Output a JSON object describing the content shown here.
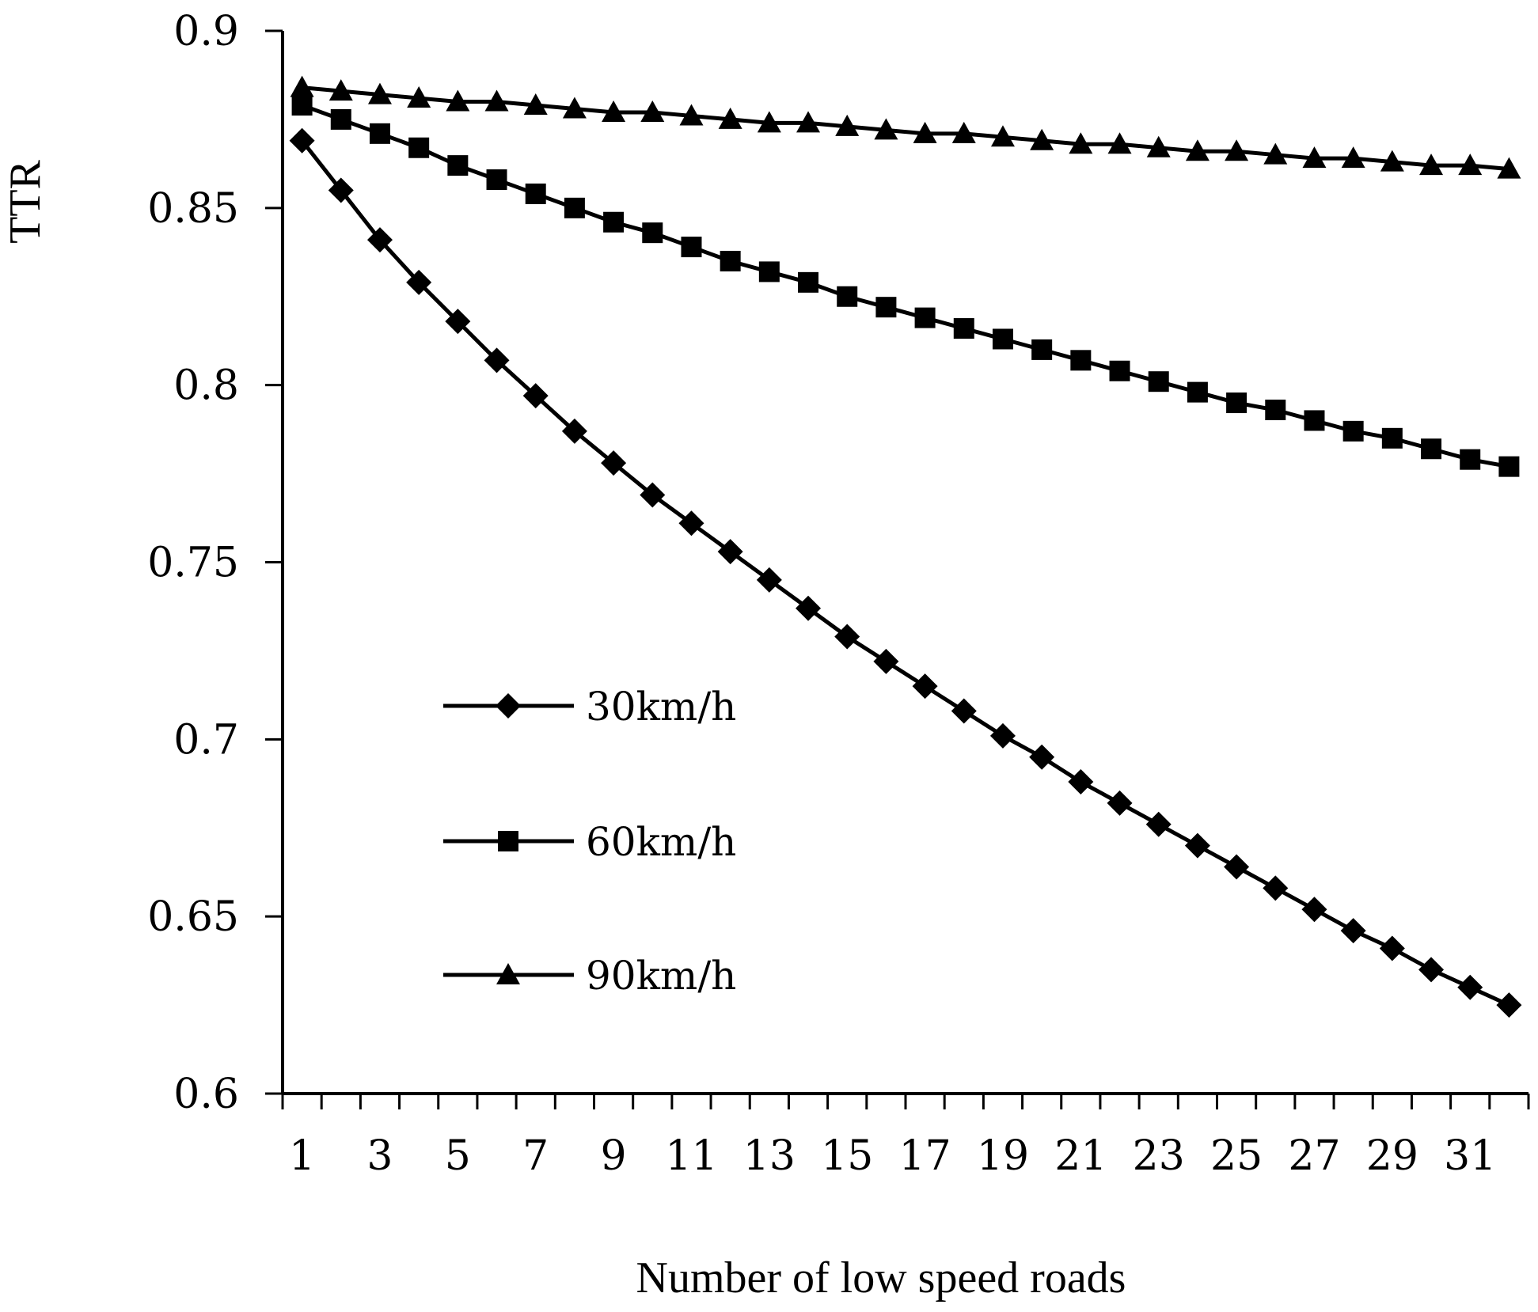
{
  "chart_data": {
    "type": "line",
    "title": "",
    "xlabel": "Number of  low speed roads",
    "ylabel": "TTR",
    "x": [
      1,
      2,
      3,
      4,
      5,
      6,
      7,
      8,
      9,
      10,
      11,
      12,
      13,
      14,
      15,
      16,
      17,
      18,
      19,
      20,
      21,
      22,
      23,
      24,
      25,
      26,
      27,
      28,
      29,
      30,
      31,
      32
    ],
    "x_tick_labels": [
      "1",
      "3",
      "5",
      "7",
      "9",
      "11",
      "13",
      "15",
      "17",
      "19",
      "21",
      "23",
      "25",
      "27",
      "29",
      "31"
    ],
    "xlim": [
      0.5,
      32.5
    ],
    "ylim": [
      0.6,
      0.9
    ],
    "y_ticks": [
      0.6,
      0.65,
      0.7,
      0.75,
      0.8,
      0.85,
      0.9
    ],
    "y_tick_labels": [
      "0.6",
      "0.65",
      "0.7",
      "0.75",
      "0.8",
      "0.85",
      "0.9"
    ],
    "grid": false,
    "legend_position": "center-left",
    "series": [
      {
        "name": "30km/h",
        "marker": "diamond",
        "values": [
          0.869,
          0.855,
          0.841,
          0.829,
          0.818,
          0.807,
          0.797,
          0.787,
          0.778,
          0.769,
          0.761,
          0.753,
          0.745,
          0.737,
          0.729,
          0.722,
          0.715,
          0.708,
          0.701,
          0.695,
          0.688,
          0.682,
          0.676,
          0.67,
          0.664,
          0.658,
          0.652,
          0.646,
          0.641,
          0.635,
          0.63,
          0.625
        ]
      },
      {
        "name": "60km/h",
        "marker": "square",
        "values": [
          0.879,
          0.875,
          0.871,
          0.867,
          0.862,
          0.858,
          0.854,
          0.85,
          0.846,
          0.843,
          0.839,
          0.835,
          0.832,
          0.829,
          0.825,
          0.822,
          0.819,
          0.816,
          0.813,
          0.81,
          0.807,
          0.804,
          0.801,
          0.798,
          0.795,
          0.793,
          0.79,
          0.787,
          0.785,
          0.782,
          0.779,
          0.777
        ]
      },
      {
        "name": "90km/h",
        "marker": "triangle",
        "values": [
          0.884,
          0.883,
          0.882,
          0.881,
          0.88,
          0.88,
          0.879,
          0.878,
          0.877,
          0.877,
          0.876,
          0.875,
          0.874,
          0.874,
          0.873,
          0.872,
          0.871,
          0.871,
          0.87,
          0.869,
          0.868,
          0.868,
          0.867,
          0.866,
          0.866,
          0.865,
          0.864,
          0.864,
          0.863,
          0.862,
          0.862,
          0.861
        ]
      }
    ]
  }
}
